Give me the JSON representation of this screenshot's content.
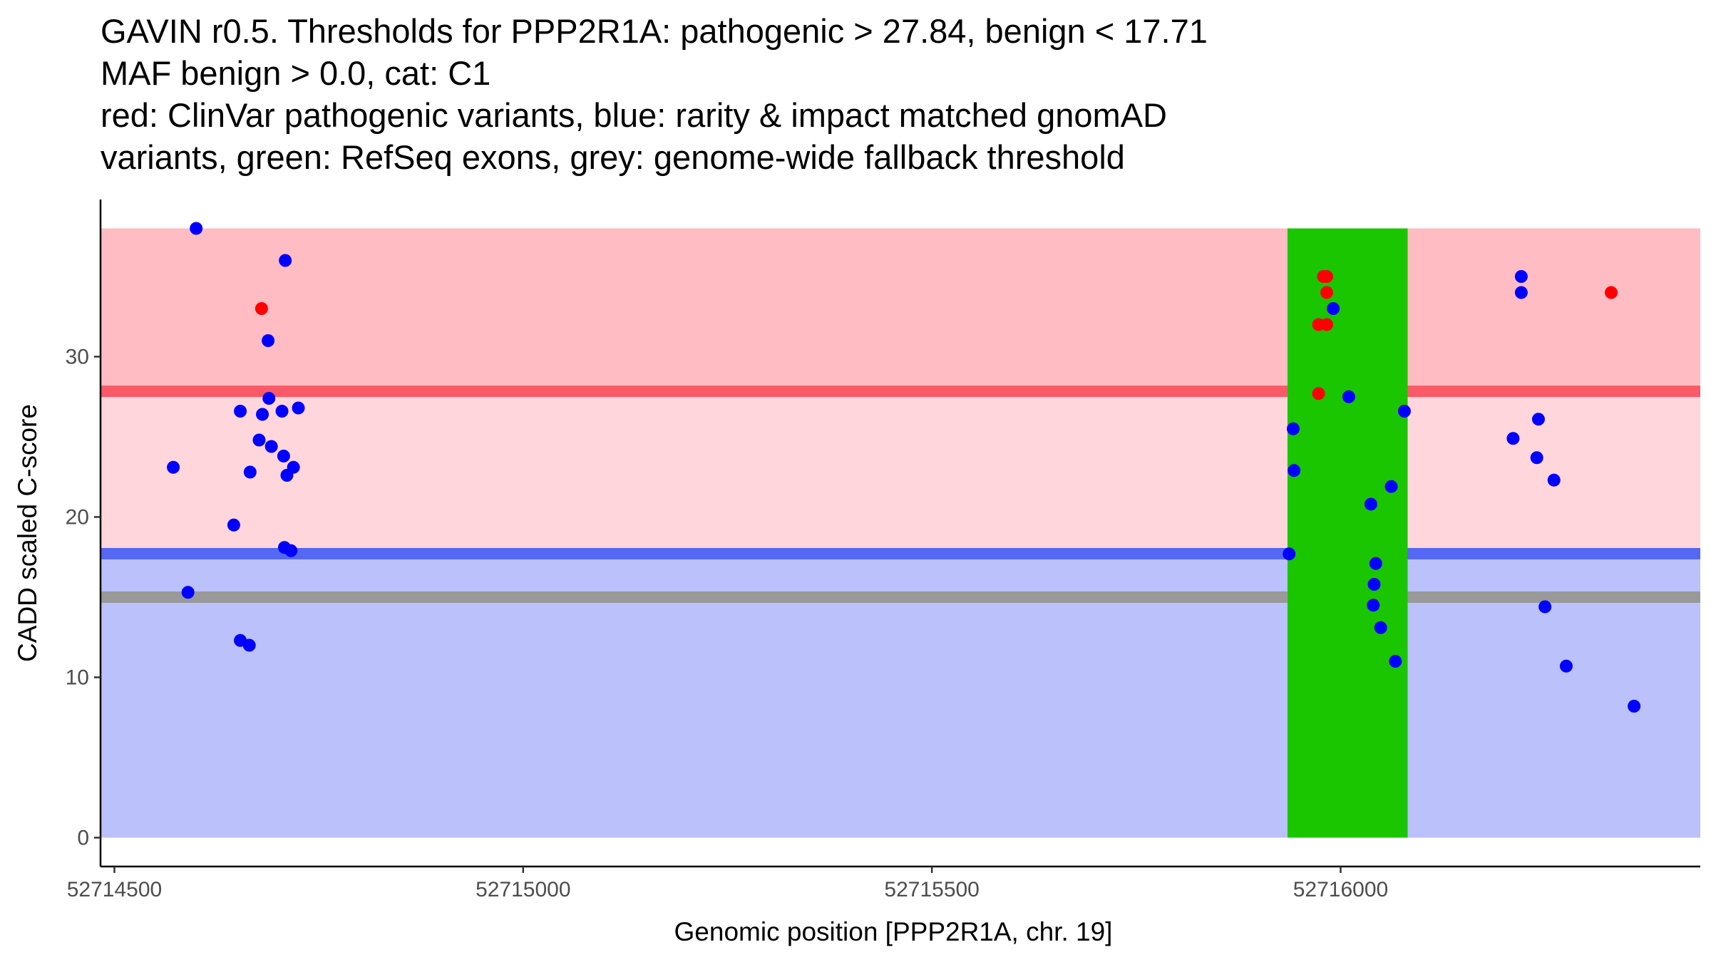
{
  "chart_data": {
    "type": "scatter",
    "title_lines": [
      "GAVIN r0.5. Thresholds for PPP2R1A: pathogenic > 27.84, benign < 17.71",
      "MAF benign > 0.0, cat: C1",
      "red: ClinVar pathogenic variants, blue: rarity & impact matched gnomAD",
      "variants, green: RefSeq exons, grey: genome-wide fallback threshold"
    ],
    "xlabel": "Genomic position [PPP2R1A, chr. 19]",
    "ylabel": "CADD scaled C-score",
    "xlim": [
      52714483,
      52716440
    ],
    "ylim": [
      -1.8,
      39.8
    ],
    "x_ticks": [
      {
        "value": 52714500,
        "label": "52714500"
      },
      {
        "value": 52715000,
        "label": "52715000"
      },
      {
        "value": 52715500,
        "label": "52715500"
      },
      {
        "value": 52716000,
        "label": "52716000"
      }
    ],
    "y_ticks": [
      {
        "value": 0,
        "label": "0"
      },
      {
        "value": 10,
        "label": "10"
      },
      {
        "value": 20,
        "label": "20"
      },
      {
        "value": 30,
        "label": "30"
      }
    ],
    "thresholds": {
      "pathogenic": 27.84,
      "benign": 17.71,
      "fallback": 15.0,
      "score_max": 38
    },
    "colors": {
      "pathogenic_region": "#ffbcc2",
      "intermediate_region": "#ffd6dc",
      "benign_region": "#bbc1fa",
      "pathogenic_line": "#fa5a67",
      "benign_line": "#5468f4",
      "fallback_line": "#999999",
      "exon": "#1ac600",
      "pathogenic_point": "#ff0000",
      "benign_point": "#0000ff",
      "axis": "#000000"
    },
    "exons": [
      {
        "start": 52715935,
        "end": 52716082
      }
    ],
    "series": [
      {
        "name": "gnomAD matched variants",
        "color": "#0000ff",
        "points": [
          {
            "x": 52714600,
            "y": 38.0
          },
          {
            "x": 52714709,
            "y": 36.0
          },
          {
            "x": 52714688,
            "y": 31.0
          },
          {
            "x": 52714689,
            "y": 27.4
          },
          {
            "x": 52714654,
            "y": 26.6
          },
          {
            "x": 52714681,
            "y": 26.4
          },
          {
            "x": 52714705,
            "y": 26.6
          },
          {
            "x": 52714725,
            "y": 26.8
          },
          {
            "x": 52714692,
            "y": 24.4
          },
          {
            "x": 52714677,
            "y": 24.8
          },
          {
            "x": 52714707,
            "y": 23.8
          },
          {
            "x": 52714572,
            "y": 23.1
          },
          {
            "x": 52714666,
            "y": 22.8
          },
          {
            "x": 52714711,
            "y": 22.6
          },
          {
            "x": 52714719,
            "y": 23.1
          },
          {
            "x": 52714646,
            "y": 19.5
          },
          {
            "x": 52714708,
            "y": 18.1
          },
          {
            "x": 52714716,
            "y": 17.9
          },
          {
            "x": 52714590,
            "y": 15.3
          },
          {
            "x": 52714654,
            "y": 12.3
          },
          {
            "x": 52714665,
            "y": 12.0
          },
          {
            "x": 52715991,
            "y": 33.0
          },
          {
            "x": 52716010,
            "y": 27.5
          },
          {
            "x": 52716078,
            "y": 26.6
          },
          {
            "x": 52715942,
            "y": 25.5
          },
          {
            "x": 52715943,
            "y": 22.9
          },
          {
            "x": 52716062,
            "y": 21.9
          },
          {
            "x": 52716037,
            "y": 20.8
          },
          {
            "x": 52715937,
            "y": 17.7
          },
          {
            "x": 52716043,
            "y": 17.1
          },
          {
            "x": 52716041,
            "y": 15.8
          },
          {
            "x": 52716040,
            "y": 14.5
          },
          {
            "x": 52716049,
            "y": 13.1
          },
          {
            "x": 52716067,
            "y": 11.0
          },
          {
            "x": 52716221,
            "y": 35.0
          },
          {
            "x": 52716221,
            "y": 34.0
          },
          {
            "x": 52716242,
            "y": 26.1
          },
          {
            "x": 52716211,
            "y": 24.9
          },
          {
            "x": 52716240,
            "y": 23.7
          },
          {
            "x": 52716261,
            "y": 22.3
          },
          {
            "x": 52716250,
            "y": 14.4
          },
          {
            "x": 52716276,
            "y": 10.7
          },
          {
            "x": 52716359,
            "y": 8.2
          }
        ]
      },
      {
        "name": "ClinVar pathogenic variants",
        "color": "#ff0000",
        "points": [
          {
            "x": 52714680,
            "y": 33.0
          },
          {
            "x": 52715979,
            "y": 35.0
          },
          {
            "x": 52715983,
            "y": 35.0
          },
          {
            "x": 52715983,
            "y": 34.0
          },
          {
            "x": 52715973,
            "y": 32.0
          },
          {
            "x": 52715983,
            "y": 32.0
          },
          {
            "x": 52715973,
            "y": 27.7
          },
          {
            "x": 52716331,
            "y": 34.0
          }
        ]
      }
    ]
  }
}
